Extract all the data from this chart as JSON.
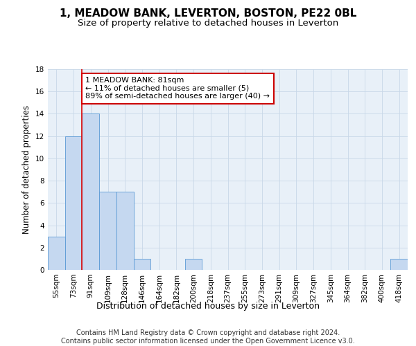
{
  "title": "1, MEADOW BANK, LEVERTON, BOSTON, PE22 0BL",
  "subtitle": "Size of property relative to detached houses in Leverton",
  "xlabel": "Distribution of detached houses by size in Leverton",
  "ylabel": "Number of detached properties",
  "categories": [
    "55sqm",
    "73sqm",
    "91sqm",
    "109sqm",
    "128sqm",
    "146sqm",
    "164sqm",
    "182sqm",
    "200sqm",
    "218sqm",
    "237sqm",
    "255sqm",
    "273sqm",
    "291sqm",
    "309sqm",
    "327sqm",
    "345sqm",
    "364sqm",
    "382sqm",
    "400sqm",
    "418sqm"
  ],
  "values": [
    3,
    12,
    14,
    7,
    7,
    1,
    0,
    0,
    1,
    0,
    0,
    0,
    0,
    0,
    0,
    0,
    0,
    0,
    0,
    0,
    1
  ],
  "bar_color": "#c5d8f0",
  "bar_edge_color": "#5a9ad5",
  "annotation_text": "1 MEADOW BANK: 81sqm\n← 11% of detached houses are smaller (5)\n89% of semi-detached houses are larger (40) →",
  "annotation_box_color": "#ffffff",
  "annotation_box_edge_color": "#cc0000",
  "ylim": [
    0,
    18
  ],
  "yticks": [
    0,
    2,
    4,
    6,
    8,
    10,
    12,
    14,
    16,
    18
  ],
  "grid_color": "#c8d8e8",
  "background_color": "#e8f0f8",
  "footer_text": "Contains HM Land Registry data © Crown copyright and database right 2024.\nContains public sector information licensed under the Open Government Licence v3.0.",
  "title_fontsize": 11,
  "subtitle_fontsize": 9.5,
  "xlabel_fontsize": 9,
  "ylabel_fontsize": 8.5,
  "tick_fontsize": 7.5,
  "annotation_fontsize": 8,
  "footer_fontsize": 7
}
